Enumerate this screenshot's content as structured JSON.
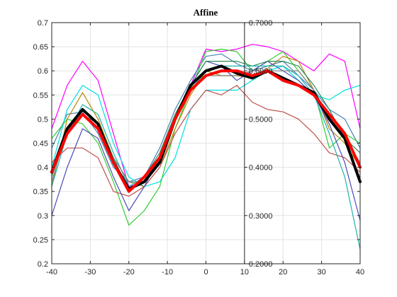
{
  "chart_data": {
    "type": "line",
    "title": "Affine",
    "xlabel": "",
    "ylabel": "",
    "xlim": [
      -40,
      40
    ],
    "ylim": [
      0.2,
      0.7
    ],
    "grid": true,
    "x_ticks": [
      "-40",
      "-30",
      "-20",
      "-10",
      "0",
      "10",
      "20",
      "30",
      "40"
    ],
    "y_ticks": [
      "0.2",
      "0.25",
      "0.3",
      "0.35",
      "0.4",
      "0.45",
      "0.5",
      "0.55",
      "0.6",
      "0.65",
      "0.7"
    ],
    "secondary_axis": {
      "position_x": 10,
      "ticks": [
        "0.2000",
        "0.3000",
        "0.4000",
        "0.5000",
        "0.6000",
        "0.7000"
      ],
      "tick_values": [
        0.2,
        0.3,
        0.4,
        0.5,
        0.6,
        0.7
      ]
    },
    "x": [
      -40,
      -36,
      -32,
      -28,
      -24,
      -20,
      -16,
      -12,
      -8,
      -4,
      0,
      4,
      8,
      12,
      16,
      20,
      24,
      28,
      32,
      36,
      40
    ],
    "series": [
      {
        "color": "#ff00ff",
        "width": 1.2,
        "values": [
          0.48,
          0.57,
          0.62,
          0.58,
          0.47,
          0.36,
          0.37,
          0.42,
          0.5,
          0.57,
          0.645,
          0.64,
          0.645,
          0.655,
          0.65,
          0.64,
          0.62,
          0.6,
          0.635,
          0.62,
          0.48
        ]
      },
      {
        "color": "#4682b4",
        "width": 1.2,
        "values": [
          0.44,
          0.51,
          0.515,
          0.47,
          0.4,
          0.37,
          0.38,
          0.44,
          0.52,
          0.58,
          0.63,
          0.635,
          0.615,
          0.6,
          0.61,
          0.62,
          0.59,
          0.56,
          0.52,
          0.5,
          0.44
        ]
      },
      {
        "color": "#00e0e0",
        "width": 1.2,
        "values": [
          0.4,
          0.52,
          0.57,
          0.55,
          0.45,
          0.38,
          0.36,
          0.37,
          0.42,
          0.52,
          0.56,
          0.56,
          0.56,
          0.58,
          0.6,
          0.61,
          0.58,
          0.55,
          0.54,
          0.56,
          0.57
        ]
      },
      {
        "color": "#33cc33",
        "width": 1.2,
        "values": [
          0.46,
          0.5,
          0.49,
          0.45,
          0.37,
          0.28,
          0.31,
          0.36,
          0.48,
          0.56,
          0.64,
          0.645,
          0.64,
          0.6,
          0.62,
          0.64,
          0.6,
          0.56,
          0.44,
          0.47,
          0.45
        ]
      },
      {
        "color": "#b8860b",
        "width": 1.2,
        "values": [
          0.36,
          0.5,
          0.555,
          0.5,
          0.42,
          0.37,
          0.36,
          0.4,
          0.48,
          0.55,
          0.6,
          0.59,
          0.59,
          0.585,
          0.605,
          0.63,
          0.62,
          0.56,
          0.48,
          0.45,
          0.4
        ]
      },
      {
        "color": "#c0504d",
        "width": 1.2,
        "values": [
          0.41,
          0.44,
          0.44,
          0.42,
          0.35,
          0.34,
          0.36,
          0.4,
          0.47,
          0.52,
          0.56,
          0.55,
          0.57,
          0.535,
          0.52,
          0.515,
          0.5,
          0.47,
          0.43,
          0.42,
          0.39
        ]
      },
      {
        "color": "#4b4bb8",
        "width": 1.2,
        "values": [
          0.3,
          0.4,
          0.48,
          0.46,
          0.38,
          0.31,
          0.36,
          0.42,
          0.5,
          0.57,
          0.62,
          0.61,
          0.58,
          0.6,
          0.62,
          0.6,
          0.58,
          0.55,
          0.49,
          0.41,
          0.29
        ]
      },
      {
        "color": "#2e8b57",
        "width": 1.2,
        "values": [
          0.38,
          0.48,
          0.51,
          0.49,
          0.42,
          0.35,
          0.38,
          0.43,
          0.51,
          0.57,
          0.62,
          0.62,
          0.62,
          0.61,
          0.62,
          0.62,
          0.61,
          0.57,
          0.52,
          0.46,
          0.43
        ]
      },
      {
        "color": "#20b2aa",
        "width": 1.2,
        "values": [
          0.36,
          0.47,
          0.53,
          0.51,
          0.43,
          0.36,
          0.38,
          0.42,
          0.5,
          0.56,
          0.6,
          0.61,
          0.61,
          0.61,
          0.61,
          0.61,
          0.59,
          0.55,
          0.47,
          0.38,
          0.23
        ]
      },
      {
        "color": "#808080",
        "width": 1.2,
        "values": [
          0.37,
          0.48,
          0.52,
          0.49,
          0.42,
          0.37,
          0.37,
          0.42,
          0.5,
          0.56,
          0.59,
          0.59,
          0.59,
          0.6,
          0.6,
          0.6,
          0.6,
          0.56,
          0.5,
          0.46,
          0.41
        ]
      },
      {
        "color": "#000000",
        "width": 4,
        "values": [
          0.39,
          0.48,
          0.52,
          0.49,
          0.41,
          0.355,
          0.37,
          0.41,
          0.5,
          0.57,
          0.6,
          0.61,
          0.595,
          0.585,
          0.6,
          0.585,
          0.57,
          0.555,
          0.5,
          0.46,
          0.37
        ]
      },
      {
        "color": "#ff0000",
        "width": 4,
        "values": [
          0.39,
          0.47,
          0.51,
          0.48,
          0.41,
          0.35,
          0.38,
          0.42,
          0.5,
          0.56,
          0.59,
          0.6,
          0.6,
          0.59,
          0.6,
          0.58,
          0.57,
          0.55,
          0.51,
          0.47,
          0.4
        ]
      }
    ]
  }
}
